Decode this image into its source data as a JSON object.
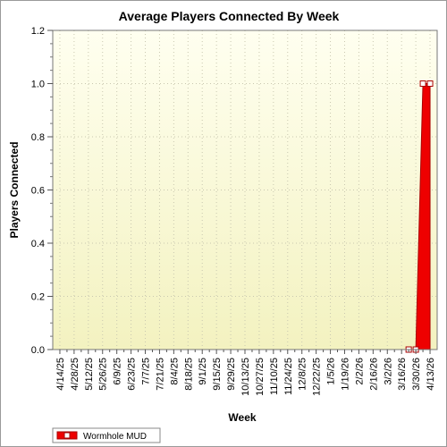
{
  "chart_data": {
    "type": "area",
    "title": "Average Players Connected By Week",
    "xlabel": "Week",
    "ylabel": "Players Connected",
    "ylim": [
      0,
      1.2
    ],
    "yticks": [
      "0.0",
      "0.2",
      "0.4",
      "0.6",
      "0.8",
      "1.0",
      "1.2"
    ],
    "categories": [
      "4/14/25",
      "4/28/25",
      "5/12/25",
      "5/26/25",
      "6/9/25",
      "6/23/25",
      "7/7/25",
      "7/21/25",
      "8/4/25",
      "8/18/25",
      "9/1/25",
      "9/15/25",
      "9/29/25",
      "10/13/25",
      "10/27/25",
      "11/10/25",
      "11/24/25",
      "12/8/25",
      "12/22/25",
      "1/5/26",
      "1/19/26",
      "2/2/26",
      "2/16/26",
      "3/2/26",
      "3/16/26",
      "3/30/26",
      "4/13/26"
    ],
    "series": [
      {
        "name": "Wormhole MUD",
        "x": [
          "3/23/26",
          "3/30/26",
          "4/6/26",
          "4/13/26"
        ],
        "values": [
          0,
          0,
          1,
          1
        ]
      }
    ],
    "grid": true,
    "legend_position": "bottom-left",
    "colors": {
      "plot_background_top": "#fffff0",
      "plot_background_bottom": "#f3f2c0",
      "series_fill": "#ee0000",
      "series_line": "#aa0000",
      "marker_fill": "#ffffff"
    }
  }
}
